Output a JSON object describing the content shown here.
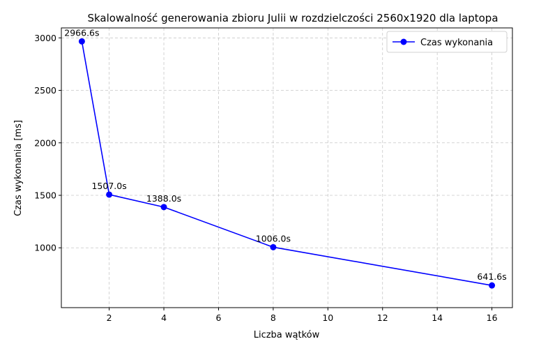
{
  "chart_data": {
    "type": "line",
    "title": "Skalowalność generowania zbioru Julii w rozdzielczości 2560x1920 dla laptopa",
    "xlabel": "Liczba wątków",
    "ylabel": "Czas wykonania [ms]",
    "x": [
      1,
      2,
      4,
      8,
      16
    ],
    "xlim": [
      0.25,
      16.75
    ],
    "ylim": [
      430,
      3095
    ],
    "xticks": [
      2,
      4,
      6,
      8,
      10,
      12,
      14,
      16
    ],
    "yticks": [
      1000,
      1500,
      2000,
      2500,
      3000
    ],
    "grid": true,
    "legend": {
      "position": "top-right"
    },
    "series": [
      {
        "name": "Czas wykonania",
        "color": "#0000ff",
        "marker": "circle",
        "values": [
          2966.6,
          1507.0,
          1388.0,
          1006.0,
          641.6
        ],
        "labels": [
          "2966.6s",
          "1507.0s",
          "1388.0s",
          "1006.0s",
          "641.6s"
        ]
      }
    ]
  }
}
